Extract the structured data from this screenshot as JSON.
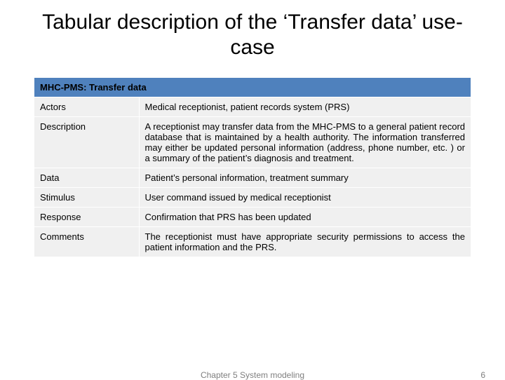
{
  "title": "Tabular description of the ‘Transfer data’ use-case",
  "table": {
    "header": "MHC-PMS: Transfer data",
    "header_bg": "#4f81bd",
    "row_bg": "#f0f0f0",
    "border_color": "#ffffff",
    "label_col_width_pct": 24,
    "font_size_pt": 13,
    "rows": [
      {
        "label": "Actors",
        "value": "Medical receptionist, patient records system (PRS)"
      },
      {
        "label": "Description",
        "value": "A receptionist may transfer data from the MHC-PMS to a general patient record database that is maintained by a health authority. The information transferred may either be updated personal information (address, phone number, etc. ) or a summary of the patient’s diagnosis and treatment."
      },
      {
        "label": "Data",
        "value": "Patient’s personal information, treatment summary"
      },
      {
        "label": "Stimulus",
        "value": "User command issued by medical receptionist"
      },
      {
        "label": "Response",
        "value": "Confirmation that PRS has been updated"
      },
      {
        "label": "Comments",
        "value": "The receptionist must have appropriate security permissions to access the patient information and the PRS."
      }
    ]
  },
  "footer": {
    "chapter": "Chapter 5 System modeling",
    "page": "6"
  },
  "colors": {
    "background": "#ffffff",
    "title_text": "#000000",
    "body_text": "#000000",
    "footer_text": "#7f7f7f"
  },
  "title_fontsize": 30
}
